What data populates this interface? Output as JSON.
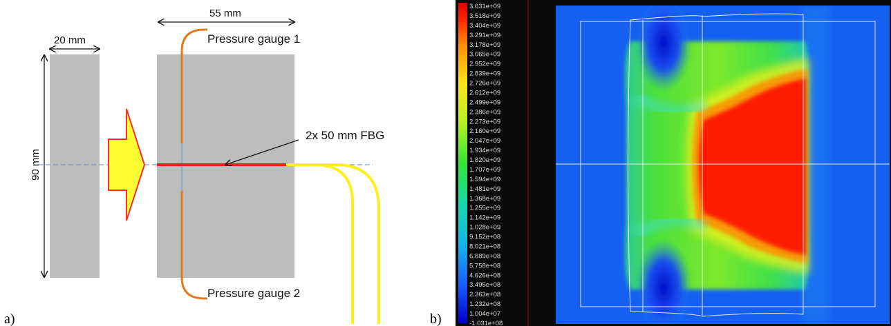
{
  "panel_a": {
    "panel_label": "a)",
    "dim_width_small": "20 mm",
    "dim_width_large": "55  mm",
    "dim_height": "90 mm",
    "label_gauge1": "Pressure gauge 1",
    "label_gauge2": "Pressure gauge 2",
    "label_fbg": "2x 50 mm FBG",
    "colors": {
      "block": "#bdbdbd",
      "gauge_wire": "#e07b1f",
      "fbg": "#ff1a1a",
      "fiber": "#ffee22",
      "arrow_fill": "#ffff33",
      "arrow_stroke": "#ff2a2a",
      "center_line": "#5b7fb5"
    }
  },
  "panel_b": {
    "panel_label": "b)",
    "colorbar_ticks": [
      "3.631e+09",
      "3.518e+09",
      "3.404e+09",
      "3.291e+09",
      "3.178e+09",
      "3.065e+09",
      "2.952e+09",
      "2.839e+09",
      "2.726e+09",
      "2.612e+09",
      "2.499e+09",
      "2.386e+09",
      "2.273e+09",
      "2.160e+09",
      "2.047e+09",
      "1.934e+09",
      "1.820e+09",
      "1.707e+09",
      "1.594e+09",
      "1.481e+09",
      "1.368e+09",
      "1.255e+09",
      "1.142e+09",
      "1.028e+09",
      "9.152e+08",
      "8.021e+08",
      "6.889e+08",
      "5.758e+08",
      "4.626e+08",
      "3.495e+08",
      "2.363e+08",
      "1.232e+08",
      "1.004e+07",
      "-1.031e+08"
    ],
    "colormap": [
      "#0000cc",
      "#1a5cff",
      "#14b8e6",
      "#19d9a6",
      "#33e633",
      "#b3f022",
      "#ffe61a",
      "#ff8c00",
      "#ff2200",
      "#dd0000"
    ],
    "colors": {
      "background": "#0a0a0a",
      "plot_bg": "#1560f0"
    }
  }
}
